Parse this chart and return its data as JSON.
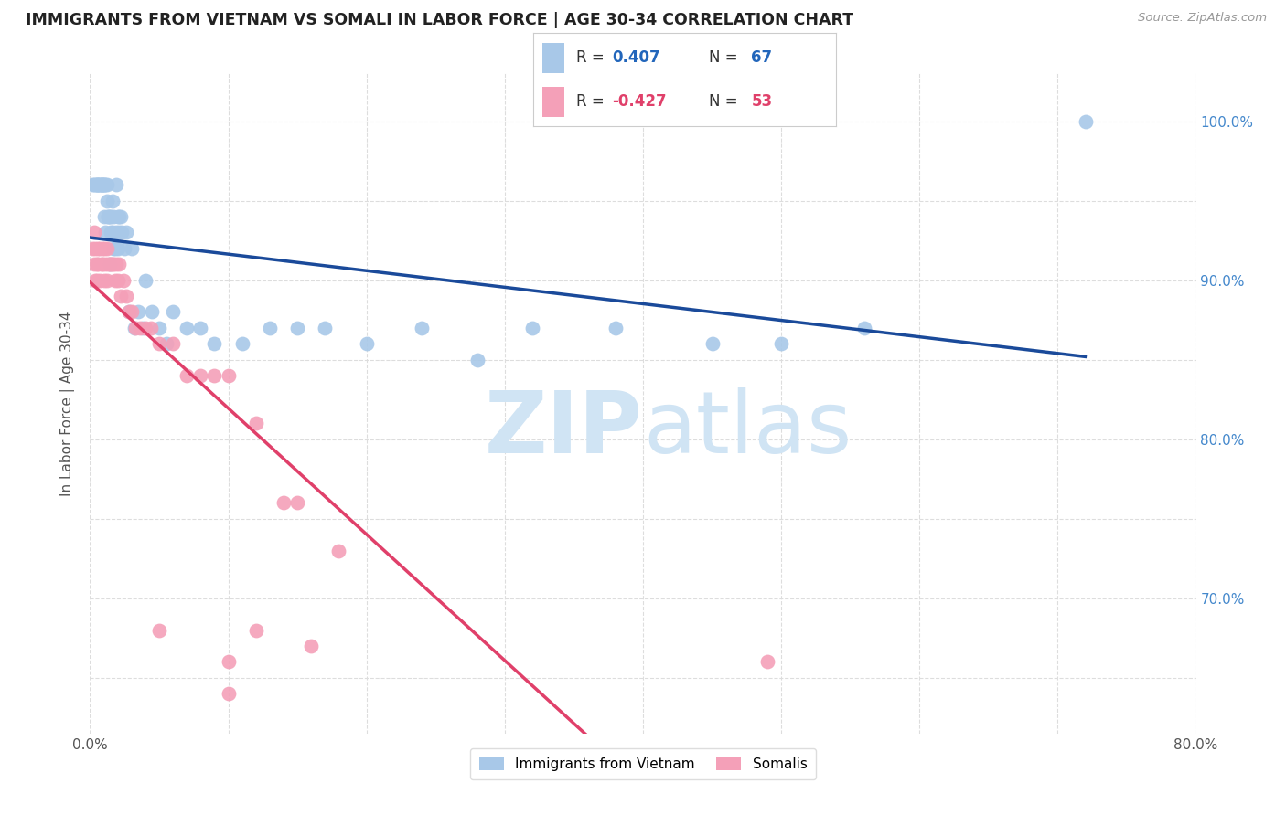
{
  "title": "IMMIGRANTS FROM VIETNAM VS SOMALI IN LABOR FORCE | AGE 30-34 CORRELATION CHART",
  "source": "Source: ZipAtlas.com",
  "ylabel": "In Labor Force | Age 30-34",
  "xlim": [
    0.0,
    0.8
  ],
  "ylim": [
    0.615,
    1.03
  ],
  "vietnam_color": "#A8C8E8",
  "somali_color": "#F4A0B8",
  "vietnam_line_color": "#1A4A9A",
  "somali_line_color": "#E0406A",
  "dashed_line_color": "#CCCCCC",
  "R_vietnam": 0.407,
  "N_vietnam": 67,
  "R_somali": -0.427,
  "N_somali": 53,
  "vietnam_x": [
    0.002,
    0.003,
    0.004,
    0.005,
    0.005,
    0.006,
    0.006,
    0.007,
    0.007,
    0.008,
    0.008,
    0.009,
    0.009,
    0.01,
    0.01,
    0.01,
    0.011,
    0.011,
    0.012,
    0.012,
    0.013,
    0.013,
    0.014,
    0.014,
    0.015,
    0.015,
    0.016,
    0.016,
    0.017,
    0.017,
    0.018,
    0.019,
    0.019,
    0.02,
    0.02,
    0.021,
    0.021,
    0.022,
    0.023,
    0.025,
    0.026,
    0.028,
    0.03,
    0.032,
    0.035,
    0.038,
    0.04,
    0.045,
    0.05,
    0.055,
    0.06,
    0.07,
    0.08,
    0.09,
    0.11,
    0.13,
    0.15,
    0.17,
    0.2,
    0.24,
    0.28,
    0.32,
    0.38,
    0.45,
    0.5,
    0.56,
    0.72
  ],
  "vietnam_y": [
    0.96,
    0.96,
    0.96,
    0.96,
    0.96,
    0.96,
    0.96,
    0.96,
    0.96,
    0.96,
    0.96,
    0.96,
    0.96,
    0.96,
    0.96,
    0.94,
    0.96,
    0.93,
    0.95,
    0.96,
    0.94,
    0.94,
    0.91,
    0.94,
    0.93,
    0.94,
    0.93,
    0.95,
    0.94,
    0.92,
    0.92,
    0.93,
    0.96,
    0.92,
    0.94,
    0.93,
    0.94,
    0.94,
    0.93,
    0.92,
    0.93,
    0.88,
    0.92,
    0.87,
    0.88,
    0.87,
    0.9,
    0.88,
    0.87,
    0.86,
    0.88,
    0.87,
    0.87,
    0.86,
    0.86,
    0.87,
    0.87,
    0.87,
    0.86,
    0.87,
    0.85,
    0.87,
    0.87,
    0.86,
    0.86,
    0.87,
    1.0
  ],
  "somali_x": [
    0.002,
    0.003,
    0.003,
    0.004,
    0.004,
    0.005,
    0.005,
    0.006,
    0.006,
    0.007,
    0.007,
    0.008,
    0.009,
    0.009,
    0.01,
    0.01,
    0.011,
    0.012,
    0.012,
    0.013,
    0.014,
    0.015,
    0.016,
    0.017,
    0.018,
    0.019,
    0.02,
    0.021,
    0.022,
    0.024,
    0.026,
    0.028,
    0.03,
    0.033,
    0.036,
    0.04,
    0.044,
    0.05,
    0.06,
    0.07,
    0.08,
    0.09,
    0.1,
    0.12,
    0.15,
    0.18,
    0.05,
    0.1,
    0.12,
    0.16,
    0.49,
    0.1,
    0.14
  ],
  "somali_y": [
    0.92,
    0.91,
    0.93,
    0.9,
    0.92,
    0.9,
    0.91,
    0.91,
    0.92,
    0.9,
    0.92,
    0.91,
    0.91,
    0.92,
    0.9,
    0.92,
    0.91,
    0.9,
    0.92,
    0.91,
    0.91,
    0.91,
    0.91,
    0.91,
    0.9,
    0.91,
    0.9,
    0.91,
    0.89,
    0.9,
    0.89,
    0.88,
    0.88,
    0.87,
    0.87,
    0.87,
    0.87,
    0.86,
    0.86,
    0.84,
    0.84,
    0.84,
    0.84,
    0.81,
    0.76,
    0.73,
    0.68,
    0.66,
    0.68,
    0.67,
    0.66,
    0.64,
    0.76
  ],
  "background_color": "#FFFFFF",
  "grid_color": "#DDDDDD",
  "watermark_color": "#D0E4F4"
}
